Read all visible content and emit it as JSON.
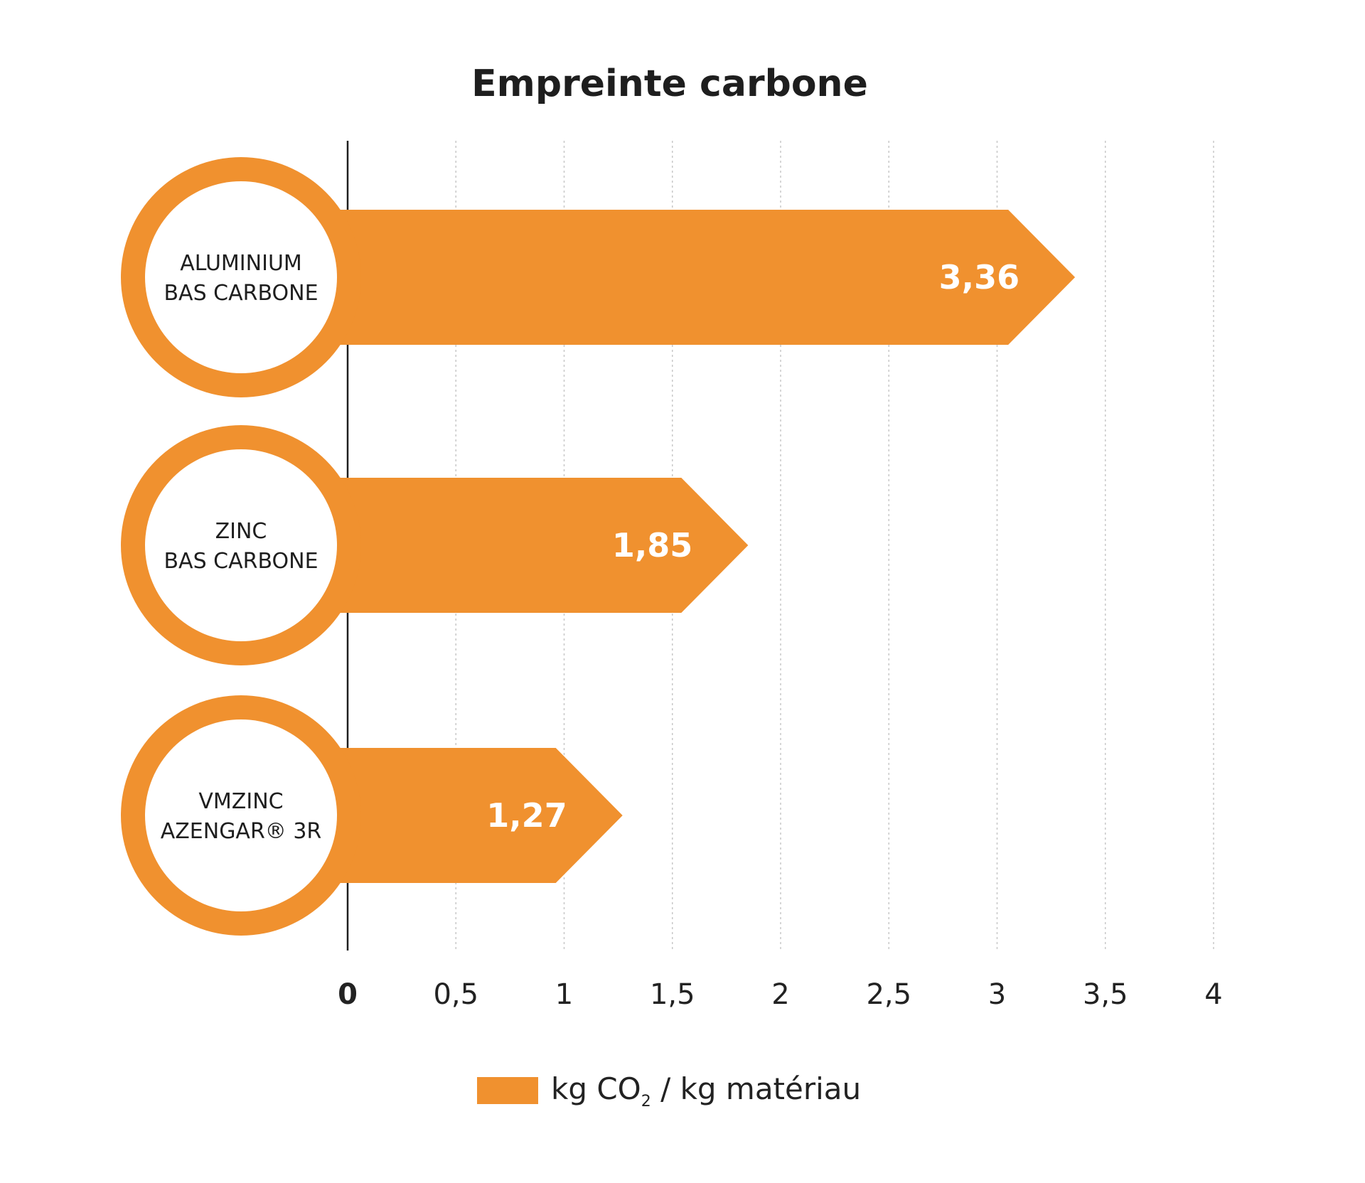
{
  "chart_data": {
    "type": "bar",
    "orientation": "horizontal",
    "title": "Empreinte carbone",
    "categories": [
      [
        "ALUMINIUM",
        "BAS CARBONE"
      ],
      [
        "ZINC",
        "BAS CARBONE"
      ],
      [
        "VMZINC",
        "AZENGAR® 3R"
      ]
    ],
    "values": [
      3.36,
      1.85,
      1.27
    ],
    "value_labels": [
      "3,36",
      "1,85",
      "1,27"
    ],
    "xlim": [
      0,
      4
    ],
    "x_ticks": [
      0,
      0.5,
      1,
      1.5,
      2,
      2.5,
      3,
      3.5,
      4
    ],
    "x_tick_labels": [
      "0",
      "0,5",
      "1",
      "1,5",
      "2",
      "2,5",
      "3",
      "3,5",
      "4"
    ],
    "grid": true,
    "grid_style": "dotted vertical",
    "legend_position": "bottom-center",
    "legend": {
      "text_before_sub": "kg CO",
      "subscript": "2",
      "text_after_sub": " / kg matériau"
    },
    "bar_color": "#F0912F"
  }
}
